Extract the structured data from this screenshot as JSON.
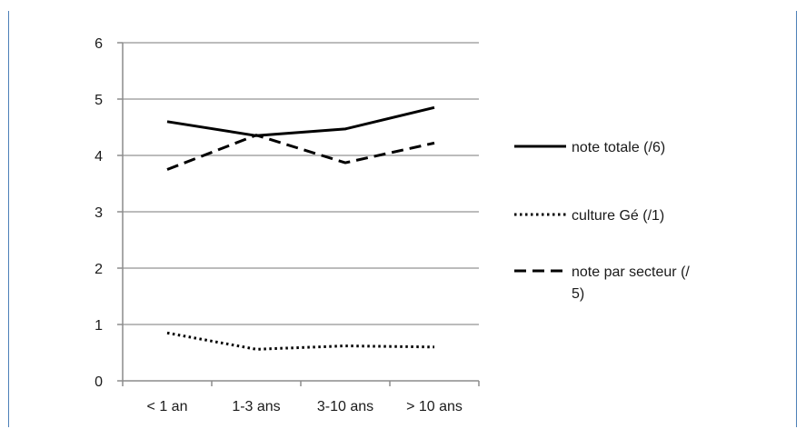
{
  "chart_data": {
    "type": "line",
    "title": "",
    "xlabel": "",
    "ylabel": "",
    "categories": [
      "< 1 an",
      "1-3 ans",
      "3-10 ans",
      "> 10 ans"
    ],
    "ylim": [
      0,
      6
    ],
    "yticks": [
      "0",
      "1",
      "2",
      "3",
      "4",
      "5",
      "6"
    ],
    "grid": true,
    "legend_position": "right",
    "series": [
      {
        "name": "note totale (/6)",
        "values": [
          4.6,
          4.35,
          4.47,
          4.85
        ],
        "style": "solid",
        "color": "#000000"
      },
      {
        "name": "culture Gé (/1)",
        "values": [
          0.85,
          0.56,
          0.62,
          0.6
        ],
        "style": "dotted",
        "color": "#000000"
      },
      {
        "name": "note par secteur (/ 5)",
        "name_lines": [
          "note par secteur (/",
          "5)"
        ],
        "values": [
          3.75,
          4.36,
          3.87,
          4.22
        ],
        "style": "dashed",
        "color": "#000000"
      }
    ],
    "colors": {
      "grid": "#a6a6a6",
      "axis": "#8c8c8c",
      "frame": "#4d80b8"
    }
  }
}
